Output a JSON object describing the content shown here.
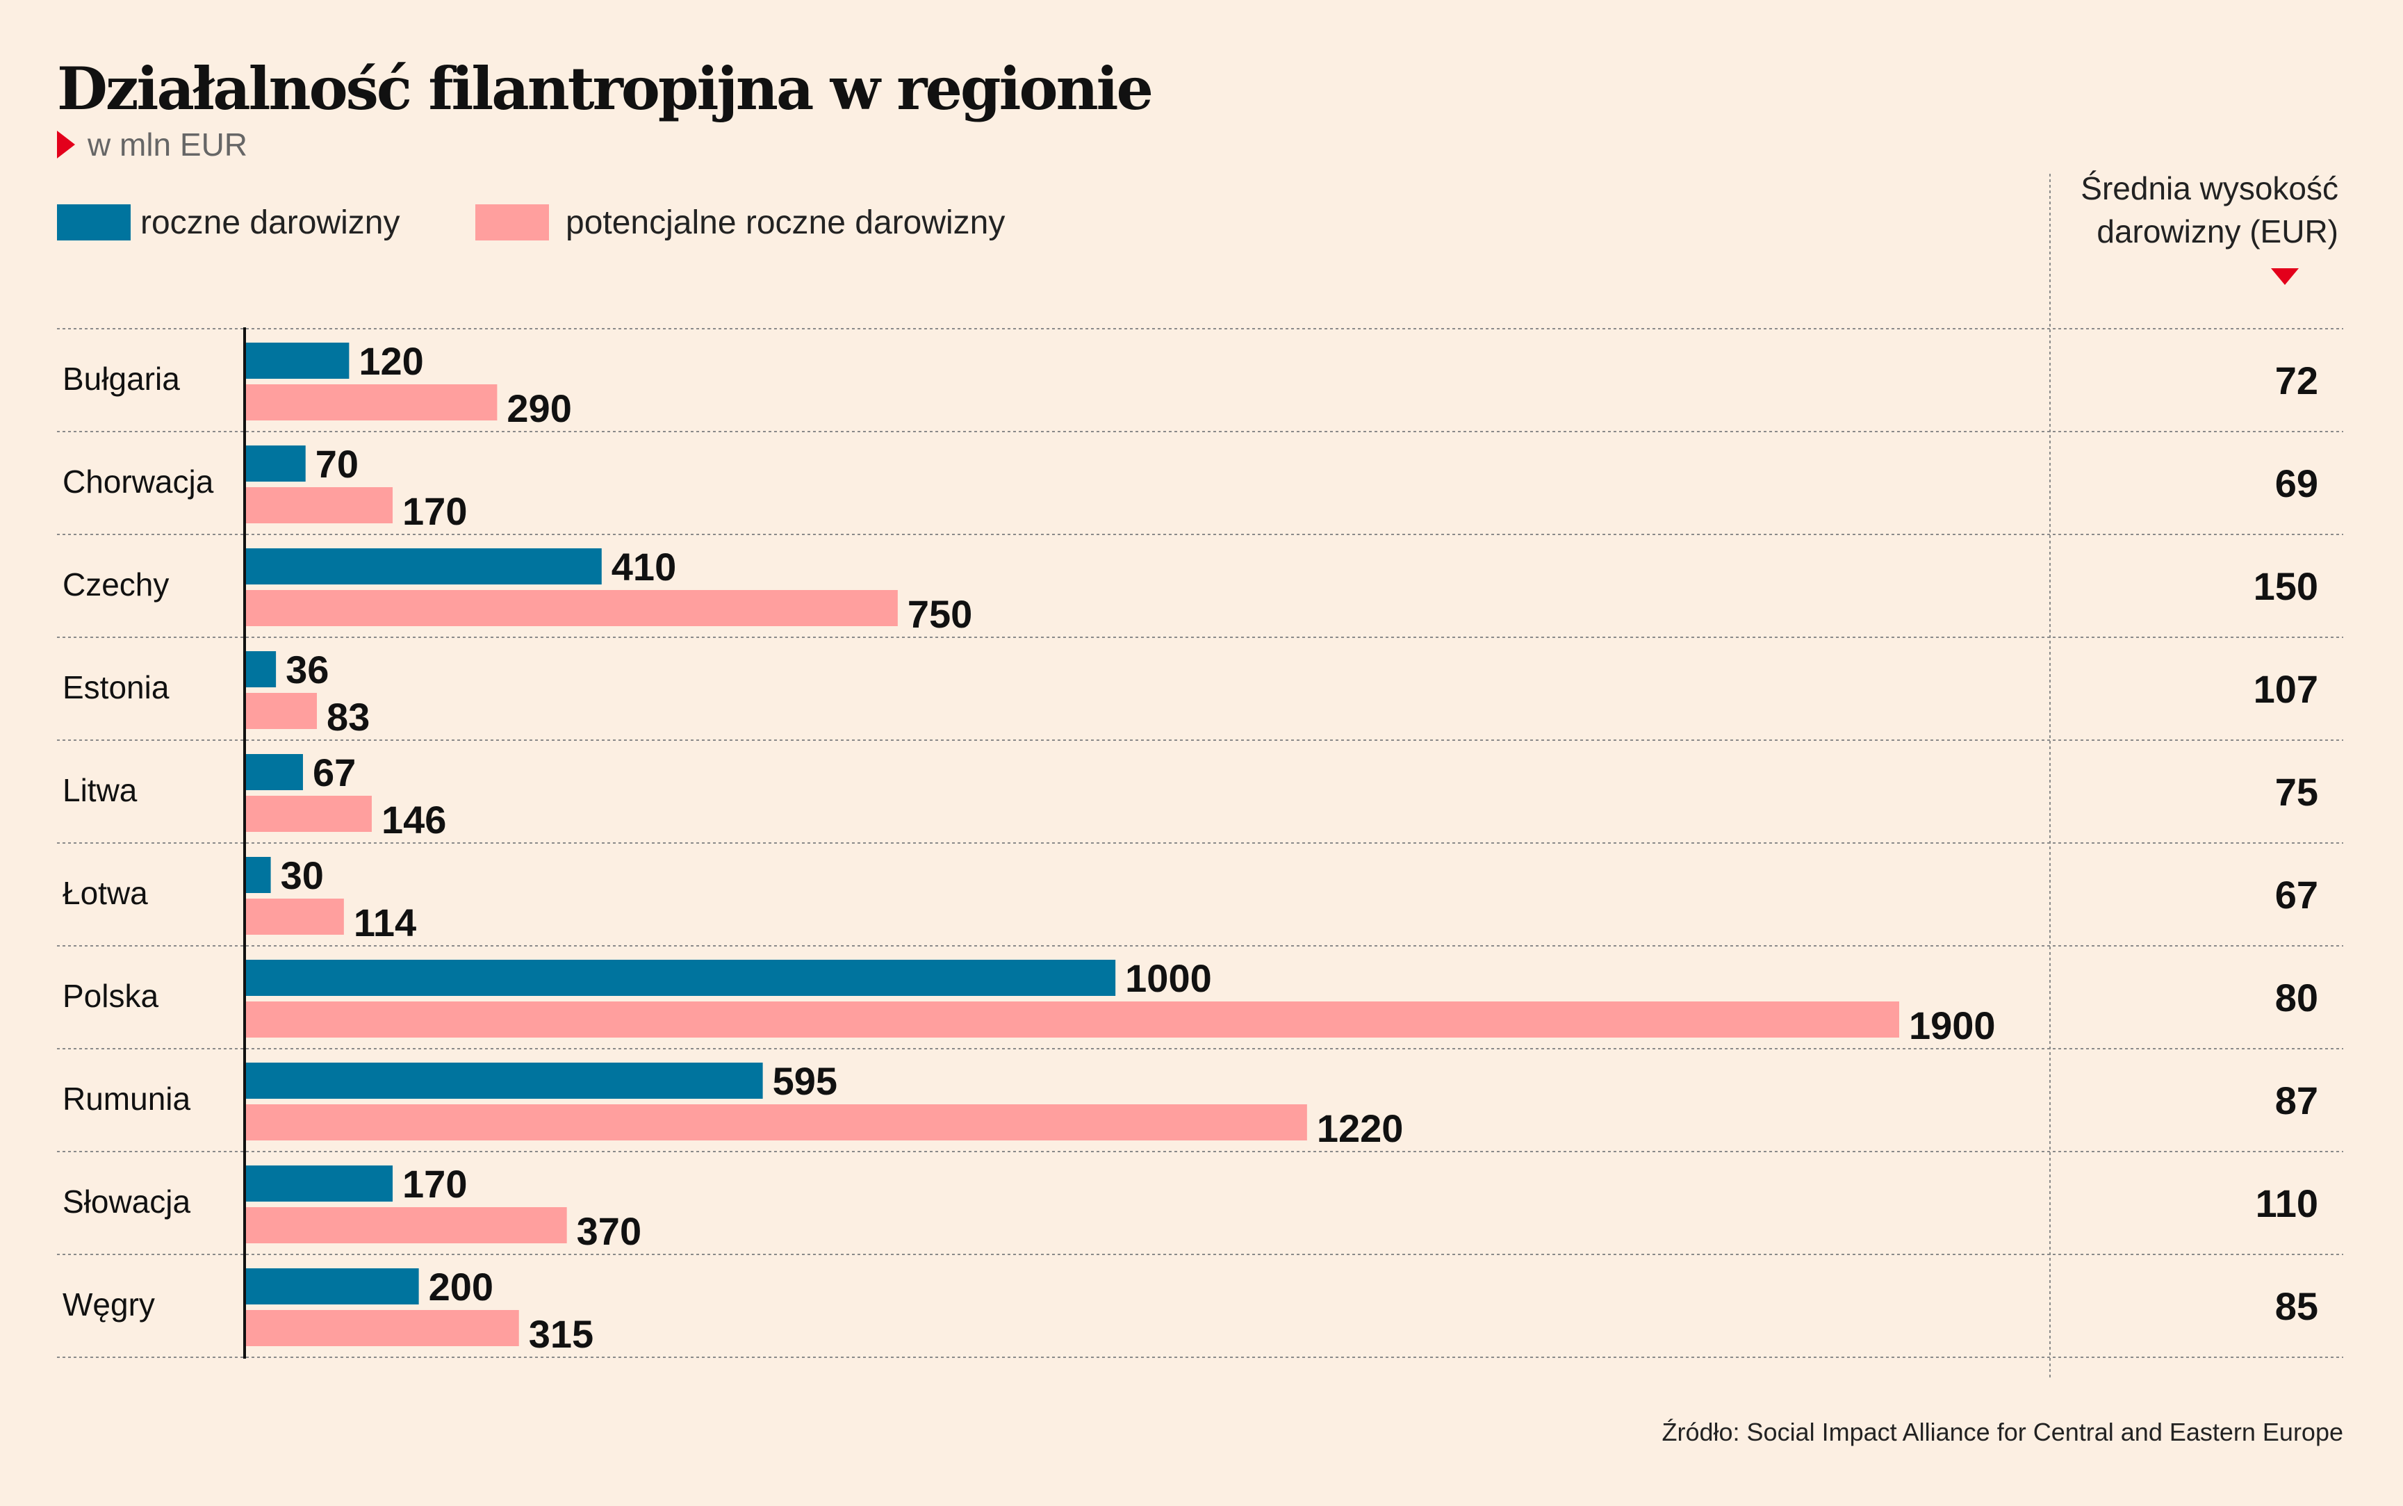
{
  "title": "Działalność filantropijna w regionie",
  "subtitle": "w mln EUR",
  "legend": {
    "annual": "roczne darowizny",
    "potential": "potencjalne roczne darowizny"
  },
  "avg_header": "Średnia wysokość darowizny (EUR)",
  "source": "Źródło: Social Impact Alliance for Central and Eastern Europe",
  "colors": {
    "annual": "#00749e",
    "potential": "#ff9f9e",
    "background": "#fcefe2",
    "accent": "#e3001b"
  },
  "chart_data": {
    "type": "bar",
    "orientation": "horizontal",
    "categories": [
      "Bułgaria",
      "Chorwacja",
      "Czechy",
      "Estonia",
      "Litwa",
      "Łotwa",
      "Polska",
      "Rumunia",
      "Słowacja",
      "Węgry"
    ],
    "series": [
      {
        "name": "roczne darowizny",
        "values": [
          120,
          70,
          410,
          36,
          67,
          30,
          1000,
          595,
          170,
          200
        ]
      },
      {
        "name": "potencjalne roczne darowizny",
        "values": [
          290,
          170,
          750,
          83,
          146,
          114,
          1900,
          1220,
          370,
          315
        ]
      }
    ],
    "avg_donation": [
      72,
      69,
      150,
      107,
      75,
      67,
      80,
      87,
      110,
      85
    ],
    "xlim": [
      0,
      1900
    ],
    "legend_position": "top-left",
    "data_labels": true,
    "grid": false
  }
}
